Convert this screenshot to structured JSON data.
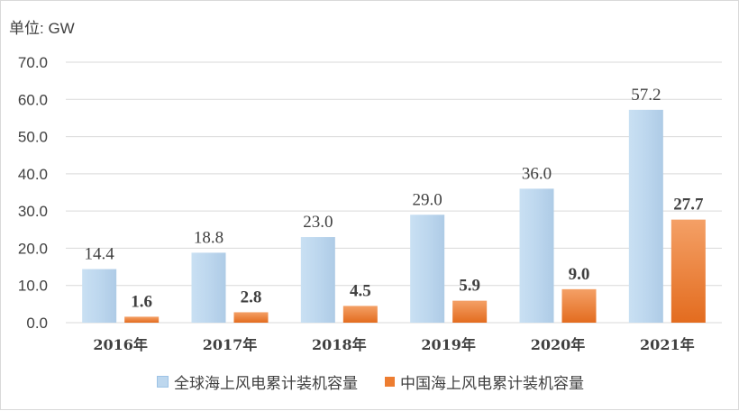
{
  "unit_label": "单位: GW",
  "colors": {
    "global": "#bdd7ee",
    "china": "#ed7d31",
    "grid": "#d9d9d9",
    "text": "#404040"
  },
  "chart_data": {
    "type": "bar",
    "categories": [
      "2016年",
      "2017年",
      "2018年",
      "2019年",
      "2020年",
      "2021年"
    ],
    "series": [
      {
        "name": "全球海上风电累计装机容量",
        "values": [
          14.4,
          18.8,
          23.0,
          29.0,
          36.0,
          57.2
        ],
        "labels": [
          "14.4",
          "18.8",
          "23.0",
          "29.0",
          "36.0",
          "57.2"
        ]
      },
      {
        "name": "中国海上风电累计装机容量",
        "values": [
          1.6,
          2.8,
          4.5,
          5.9,
          9.0,
          27.7
        ],
        "labels": [
          "1.6",
          "2.8",
          "4.5",
          "5.9",
          "9.0",
          "27.7"
        ]
      }
    ],
    "ylim": [
      0,
      70
    ],
    "yticks": [
      0,
      10,
      20,
      30,
      40,
      50,
      60,
      70
    ],
    "ytick_labels": [
      "0.0",
      "10.0",
      "20.0",
      "30.0",
      "40.0",
      "50.0",
      "60.0",
      "70.0"
    ],
    "grid": true,
    "legend": "bottom"
  }
}
